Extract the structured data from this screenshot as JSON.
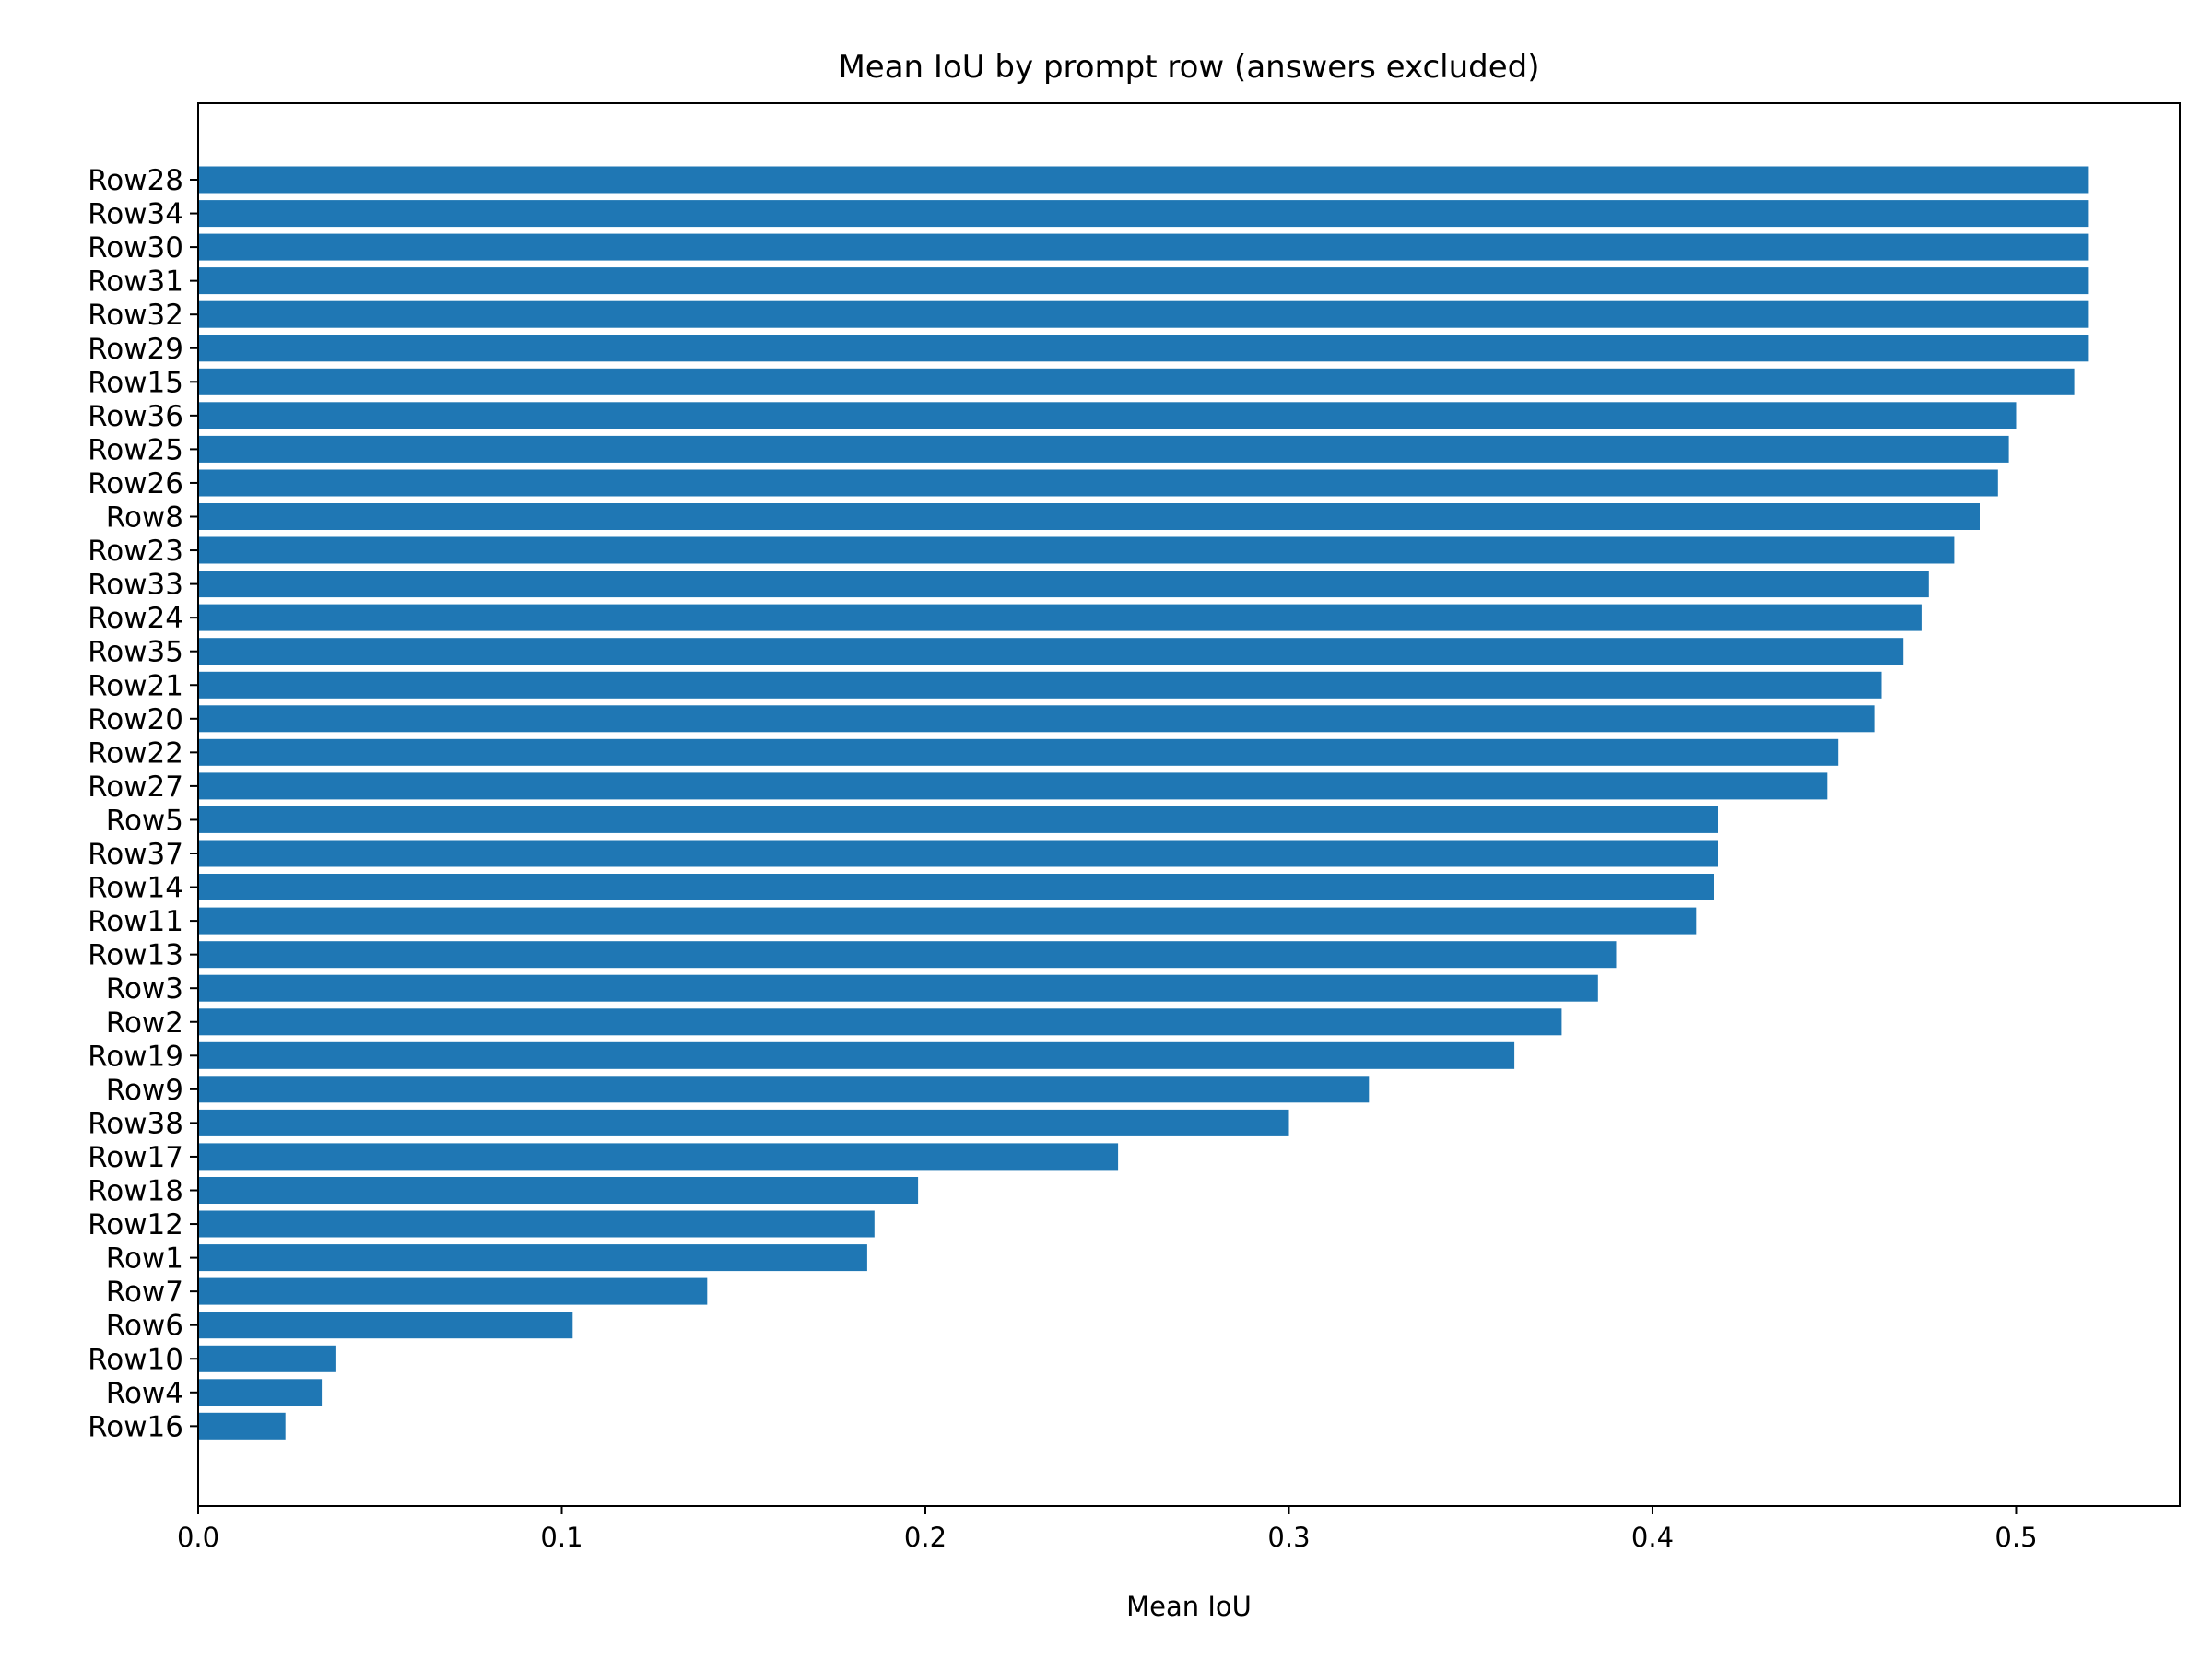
{
  "chart_data": {
    "type": "bar",
    "orientation": "horizontal",
    "title": "Mean IoU by prompt row (answers excluded)",
    "xlabel": "Mean IoU",
    "ylabel": "",
    "xlim": [
      0.0,
      0.545
    ],
    "xticks": [
      "0.0",
      "0.1",
      "0.2",
      "0.3",
      "0.4",
      "0.5"
    ],
    "grid": false,
    "bar_color": "#1f77b4",
    "categories": [
      "Row28",
      "Row34",
      "Row30",
      "Row31",
      "Row32",
      "Row29",
      "Row15",
      "Row36",
      "Row25",
      "Row26",
      "Row8",
      "Row23",
      "Row33",
      "Row24",
      "Row35",
      "Row21",
      "Row20",
      "Row22",
      "Row27",
      "Row5",
      "Row37",
      "Row14",
      "Row11",
      "Row13",
      "Row3",
      "Row2",
      "Row19",
      "Row9",
      "Row38",
      "Row17",
      "Row18",
      "Row12",
      "Row1",
      "Row7",
      "Row6",
      "Row10",
      "Row4",
      "Row16"
    ],
    "values": [
      0.52,
      0.52,
      0.52,
      0.52,
      0.52,
      0.52,
      0.516,
      0.5,
      0.498,
      0.495,
      0.49,
      0.483,
      0.476,
      0.474,
      0.469,
      0.463,
      0.461,
      0.451,
      0.448,
      0.418,
      0.418,
      0.417,
      0.412,
      0.39,
      0.385,
      0.375,
      0.362,
      0.322,
      0.3,
      0.253,
      0.198,
      0.186,
      0.184,
      0.14,
      0.103,
      0.038,
      0.034,
      0.024
    ]
  }
}
